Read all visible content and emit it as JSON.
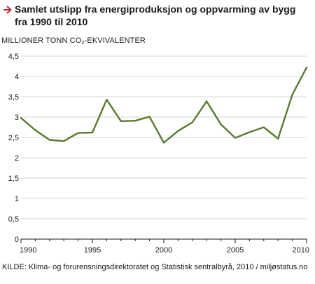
{
  "header": {
    "title_line1": "Samlet utslipp fra energiproduksjon og oppvarming av bygg",
    "title_line2": "fra 1990 til 2010",
    "arrow_icon": "arrow-right-icon",
    "accent_color": "#c0272d"
  },
  "axis": {
    "ylabel_main": "MILLIONER TONN CO",
    "ylabel_sub": "2",
    "ylabel_tail": "-EKVIVALENTER"
  },
  "source": "KILDE: Klima- og forurensningsdirektoratet og Statistisk sentralbyrå, 2010 / miljøstatus.no",
  "chart_data": {
    "type": "line",
    "title": "Samlet utslipp fra energiproduksjon og oppvarming av bygg fra 1990 til 2010",
    "ylabel": "MILLIONER TONN CO2-EKVIVALENTER",
    "xlabel": "",
    "x": [
      1990,
      1991,
      1992,
      1993,
      1994,
      1995,
      1996,
      1997,
      1998,
      1999,
      2000,
      2001,
      2002,
      2003,
      2004,
      2005,
      2006,
      2007,
      2008,
      2009,
      2010
    ],
    "series": [
      {
        "values": [
          2.98,
          2.68,
          2.44,
          2.41,
          2.61,
          2.62,
          3.43,
          2.9,
          2.91,
          3.01,
          2.37,
          2.66,
          2.87,
          3.39,
          2.82,
          2.49,
          2.63,
          2.75,
          2.47,
          3.55,
          4.22
        ],
        "color": "#5a7a2e"
      }
    ],
    "xlim": [
      1990,
      2010
    ],
    "ylim": [
      0,
      4.5
    ],
    "yticks": [
      "0",
      "0,5",
      "1",
      "1,5",
      "2",
      "2,5",
      "3",
      "3,5",
      "4",
      "4,5"
    ],
    "xticks": [
      "1990",
      "1995",
      "2000",
      "2005",
      "2010"
    ],
    "grid": true,
    "legend": "none"
  }
}
